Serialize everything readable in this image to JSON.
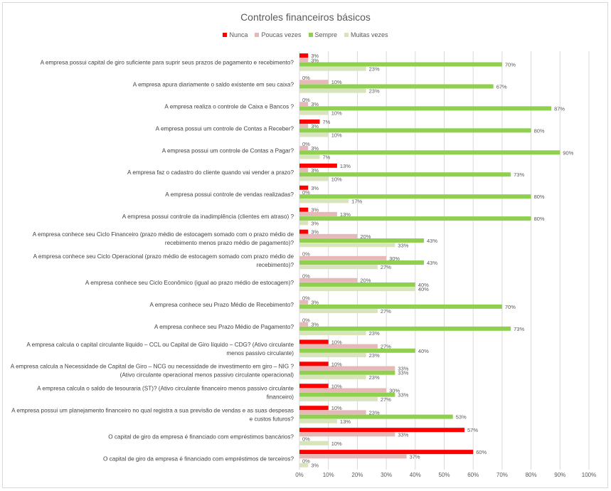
{
  "chart_data": {
    "type": "bar",
    "orientation": "horizontal",
    "title": "Controles financeiros básicos",
    "xlim": [
      0,
      100
    ],
    "tick_labels": [
      "0%",
      "10%",
      "20%",
      "30%",
      "40%",
      "50%",
      "60%",
      "70%",
      "80%",
      "90%",
      "100%"
    ],
    "grid": true,
    "legend_position": "top",
    "categories": [
      "A empresa possui capital de giro suficiente para suprir seus prazos de pagamento e recebimento?",
      "A empresa apura diariamente o saldo existente em seu caixa?",
      "A empresa realiza o controle de Caixa e Bancos ?",
      "A empresa possui um controle de Contas a Receber?",
      "A empresa possui um controle de Contas a Pagar?",
      "A empresa faz o cadastro do cliente quando vai vender a prazo?",
      "A empresa possui controle de vendas realizadas?",
      "A empresa possui controle da inadimplência (clientes em atraso) ?",
      "A empresa conhece seu Ciclo Financeiro (prazo médio de estocagem somado com o prazo médio de recebimento menos prazo médio de pagamento)?",
      "A empresa conhece seu Ciclo Operacional (prazo médio de estocagem somado com prazo médio de recebimento)?",
      "A empresa conhece seu Ciclo Econômico (igual ao prazo médio de estocagem)?",
      "A empresa conhece seu Prazo Médio de Recebimento?",
      "A empresa conhece seu Prazo Médio de Pagamento?",
      "A empresa calcula o capital circulante líquido – CCL ou Capital de Giro líquido – CDG? (Ativo circulante menos passivo circulante)",
      "A empresa calcula a Necessidade de Capital de Giro – NCG ou necessidade de investimento em giro – NIG ? (Ativo circulante operacional menos passivo circulante operacional)",
      "A empresa calcula o saldo de tesouraria (ST)? (Ativo circulante financeiro menos passivo circulante financeiro)",
      "A empresa possui um planejamento financeiro no qual registra a sua previsão de vendas e as suas despesas e custos futuros?",
      "O capital de giro da empresa é financiado com empréstimos bancários?",
      "O capital de giro da empresa é financiado com empréstimos de terceiros?"
    ],
    "category_lines": [
      [
        "A empresa possui capital de giro suficiente para suprir seus prazos de pagamento e recebimento?"
      ],
      [
        "A empresa apura diariamente o saldo existente em seu caixa?"
      ],
      [
        "A empresa realiza o controle de Caixa e Bancos ?"
      ],
      [
        "A empresa possui um controle de Contas a Receber?"
      ],
      [
        "A empresa possui um controle de Contas a Pagar?"
      ],
      [
        "A empresa faz o cadastro do cliente quando vai vender a prazo?"
      ],
      [
        "A empresa possui controle de vendas realizadas?"
      ],
      [
        "A empresa possui controle da inadimplência (clientes em atraso) ?"
      ],
      [
        "A empresa conhece seu Ciclo Financeiro (prazo médio de estocagem somado com o prazo médio de",
        "recebimento menos prazo médio de pagamento)?"
      ],
      [
        "A empresa conhece seu Ciclo Operacional (prazo médio de estocagem somado com prazo médio de",
        "recebimento)?"
      ],
      [
        "A empresa conhece seu Ciclo Econômico (igual ao prazo médio de estocagem)?"
      ],
      [
        "A empresa conhece seu Prazo Médio de Recebimento?"
      ],
      [
        "A empresa conhece seu Prazo Médio de Pagamento?"
      ],
      [
        "A empresa calcula o capital circulante líquido – CCL ou Capital de Giro líquido – CDG? (Ativo circulante",
        "menos passivo circulante)"
      ],
      [
        "A empresa calcula a Necessidade de Capital de Giro – NCG ou necessidade de investimento em giro – NIG ?",
        "(Ativo circulante operacional menos passivo circulante operacional)"
      ],
      [
        "A empresa calcula o saldo de tesouraria (ST)? (Ativo circulante financeiro menos passivo circulante",
        "financeiro)"
      ],
      [
        "A empresa possui um planejamento financeiro no qual registra a sua previsão de vendas e as suas despesas",
        "e custos futuros?"
      ],
      [
        "O capital de giro da empresa é financiado com empréstimos bancários?"
      ],
      [
        "O capital de giro da empresa é financiado com empréstimos de terceiros?"
      ]
    ],
    "series": [
      {
        "name": "Nunca",
        "color": "#ff0000",
        "values": [
          3,
          0,
          0,
          7,
          0,
          13,
          3,
          3,
          3,
          0,
          0,
          0,
          0,
          10,
          10,
          10,
          10,
          57,
          60
        ]
      },
      {
        "name": "Poucas vezes",
        "color": "#e6b8b7",
        "values": [
          3,
          10,
          3,
          3,
          3,
          3,
          0,
          13,
          20,
          30,
          20,
          3,
          3,
          27,
          33,
          30,
          23,
          33,
          37
        ]
      },
      {
        "name": "Sempre",
        "color": "#8fd14f",
        "values": [
          70,
          67,
          87,
          80,
          90,
          73,
          80,
          80,
          43,
          43,
          40,
          70,
          73,
          40,
          33,
          33,
          53,
          0,
          0
        ]
      },
      {
        "name": "Muitas vezes",
        "color": "#d8e4bc",
        "values": [
          23,
          23,
          10,
          10,
          7,
          10,
          17,
          3,
          33,
          27,
          40,
          27,
          23,
          23,
          23,
          27,
          13,
          10,
          3
        ]
      }
    ]
  }
}
